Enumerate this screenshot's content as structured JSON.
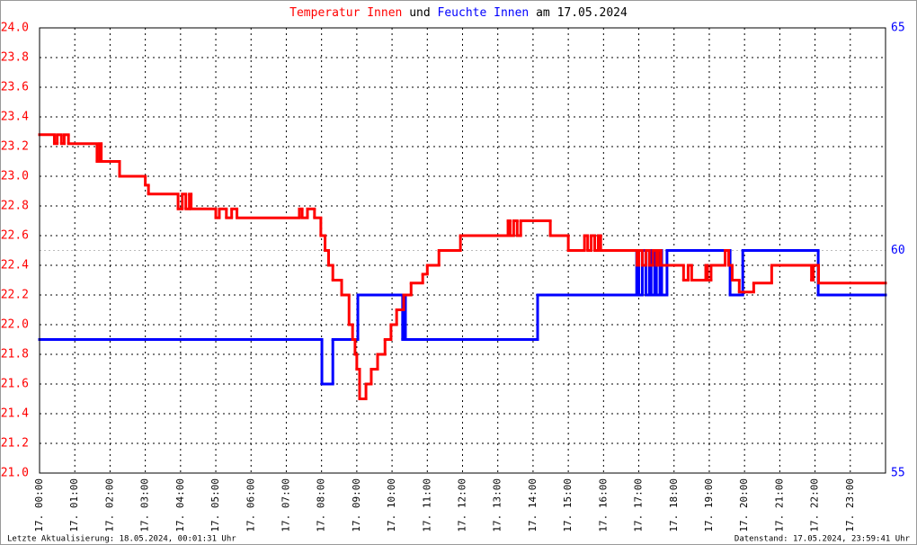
{
  "chart_data": {
    "type": "step-line",
    "title_und": "und",
    "title_date": "am 17.05.2024",
    "footer_left": "Letzte Aktualisierung: 18.05.2024, 00:01:31 Uhr",
    "footer_right": "Datenstand: 17.05.2024, 23:59:41 Uhr",
    "grid": true,
    "xlim": [
      0,
      24
    ],
    "xticks": [
      {
        "value": 0,
        "label": "17. 00:00"
      },
      {
        "value": 1,
        "label": "17. 01:00"
      },
      {
        "value": 2,
        "label": "17. 02:00"
      },
      {
        "value": 3,
        "label": "17. 03:00"
      },
      {
        "value": 4,
        "label": "17. 04:00"
      },
      {
        "value": 5,
        "label": "17. 05:00"
      },
      {
        "value": 6,
        "label": "17. 06:00"
      },
      {
        "value": 7,
        "label": "17. 07:00"
      },
      {
        "value": 8,
        "label": "17. 08:00"
      },
      {
        "value": 9,
        "label": "17. 09:00"
      },
      {
        "value": 10,
        "label": "17. 10:00"
      },
      {
        "value": 11,
        "label": "17. 11:00"
      },
      {
        "value": 12,
        "label": "17. 12:00"
      },
      {
        "value": 13,
        "label": "17. 13:00"
      },
      {
        "value": 14,
        "label": "17. 14:00"
      },
      {
        "value": 15,
        "label": "17. 15:00"
      },
      {
        "value": 16,
        "label": "17. 16:00"
      },
      {
        "value": 17,
        "label": "17. 17:00"
      },
      {
        "value": 18,
        "label": "17. 18:00"
      },
      {
        "value": 19,
        "label": "17. 19:00"
      },
      {
        "value": 20,
        "label": "17. 20:00"
      },
      {
        "value": 21,
        "label": "17. 21:00"
      },
      {
        "value": 22,
        "label": "17. 22:00"
      },
      {
        "value": 23,
        "label": "17. 23:00"
      }
    ],
    "ylim": [
      21,
      24
    ],
    "yticks": [
      {
        "value": 21,
        "label": "21.0"
      },
      21.2,
      21.4,
      21.6,
      21.8,
      {
        "value": 22,
        "label": "22.0"
      },
      22.2,
      22.4,
      22.6,
      22.8,
      {
        "value": 23,
        "label": "23.0"
      },
      23.2,
      23.4,
      23.6,
      23.8,
      {
        "value": 24,
        "label": "24.0"
      }
    ],
    "y2lim": [
      55,
      65
    ],
    "y2ticks": [
      55,
      60,
      65
    ],
    "series": [
      {
        "name": "Temperatur Innen",
        "color": "#ff0000",
        "x": [
          0,
          0.42,
          0.5,
          0.62,
          0.7,
          0.82,
          1.63,
          1.7,
          1.75,
          2.27,
          3.0,
          3.09,
          3.93,
          4.05,
          4.15,
          4.25,
          4.3,
          5.0,
          5.1,
          5.3,
          5.45,
          5.6,
          7.37,
          7.45,
          7.6,
          7.8,
          7.98,
          8.1,
          8.2,
          8.32,
          8.57,
          8.78,
          8.88,
          8.95,
          9.0,
          9.08,
          9.26,
          9.41,
          9.59,
          9.8,
          9.97,
          10.13,
          10.33,
          10.54,
          10.87,
          11.0,
          11.33,
          11.94,
          13.29,
          13.35,
          13.45,
          13.55,
          13.65,
          14.49,
          15.0,
          15.46,
          15.55,
          15.65,
          15.75,
          15.85,
          15.92,
          16.95,
          17.0,
          17.1,
          17.2,
          17.3,
          17.4,
          17.5,
          17.55,
          17.63,
          18.27,
          18.4,
          18.5,
          18.9,
          18.95,
          19.05,
          19.45,
          19.55,
          19.65,
          19.85,
          20.26,
          20.77,
          21.9,
          21.95,
          22.1
        ],
        "values": [
          23.28,
          23.22,
          23.28,
          23.22,
          23.28,
          23.22,
          23.1,
          23.22,
          23.1,
          23.0,
          22.94,
          22.88,
          22.78,
          22.88,
          22.78,
          22.88,
          22.78,
          22.72,
          22.78,
          22.72,
          22.78,
          22.72,
          22.78,
          22.72,
          22.78,
          22.72,
          22.6,
          22.5,
          22.4,
          22.3,
          22.2,
          22.0,
          21.9,
          21.8,
          21.7,
          21.5,
          21.6,
          21.7,
          21.8,
          21.9,
          22.0,
          22.1,
          22.2,
          22.28,
          22.34,
          22.4,
          22.5,
          22.6,
          22.7,
          22.6,
          22.7,
          22.6,
          22.7,
          22.6,
          22.5,
          22.6,
          22.5,
          22.6,
          22.5,
          22.6,
          22.5,
          22.4,
          22.5,
          22.4,
          22.5,
          22.4,
          22.5,
          22.4,
          22.5,
          22.4,
          22.3,
          22.4,
          22.3,
          22.4,
          22.3,
          22.4,
          22.5,
          22.4,
          22.3,
          22.22,
          22.28,
          22.4,
          22.3,
          22.4,
          22.28
        ]
      },
      {
        "name": "Feuchte Innen",
        "color": "#0000ff",
        "axis": "y2",
        "x": [
          0,
          8.01,
          8.32,
          9.03,
          10.3,
          10.34,
          10.38,
          14.13,
          16.94,
          17.0,
          17.1,
          17.2,
          17.3,
          17.35,
          17.45,
          17.5,
          17.6,
          17.65,
          17.8,
          19.59,
          19.95,
          22.09
        ],
        "values": [
          58,
          57,
          58,
          59,
          58,
          59,
          58,
          59,
          60,
          59,
          60,
          59,
          60,
          59,
          60,
          59,
          60,
          59,
          60,
          59,
          60,
          59
        ]
      }
    ]
  }
}
